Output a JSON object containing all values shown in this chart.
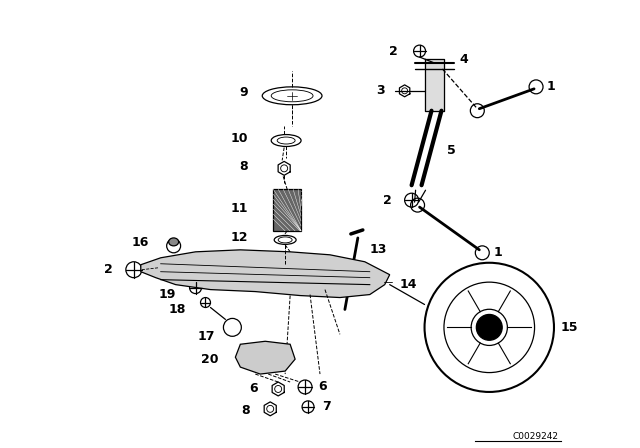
{
  "bg_color": "#ffffff",
  "line_color": "#000000",
  "fig_width": 6.4,
  "fig_height": 4.48,
  "dpi": 100,
  "watermark": "C0029242"
}
